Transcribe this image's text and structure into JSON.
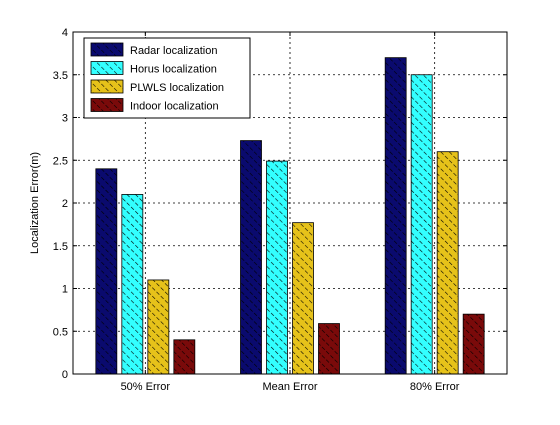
{
  "chart_data": {
    "type": "bar",
    "categories": [
      "50% Error",
      "Mean Error",
      "80% Error"
    ],
    "ylabel": "Localization Error(m)",
    "xlabel": "",
    "ylim": [
      0,
      4
    ],
    "yticks": [
      "0",
      "0.5",
      "1",
      "1.5",
      "2",
      "2.5",
      "3",
      "3.5",
      "4"
    ],
    "grid": true,
    "legend_position": "top-left",
    "series": [
      {
        "name": "Radar localization",
        "color": "#0a0a6e",
        "values": [
          2.4,
          2.73,
          3.7
        ]
      },
      {
        "name": "Horus localization",
        "color": "#33ffff",
        "values": [
          2.1,
          2.49,
          3.5
        ]
      },
      {
        "name": "PLWLS localization",
        "color": "#e6c21a",
        "values": [
          1.1,
          1.77,
          2.6
        ]
      },
      {
        "name": "Indoor localization",
        "color": "#7a0a0a",
        "values": [
          0.4,
          0.59,
          0.7
        ]
      }
    ]
  }
}
